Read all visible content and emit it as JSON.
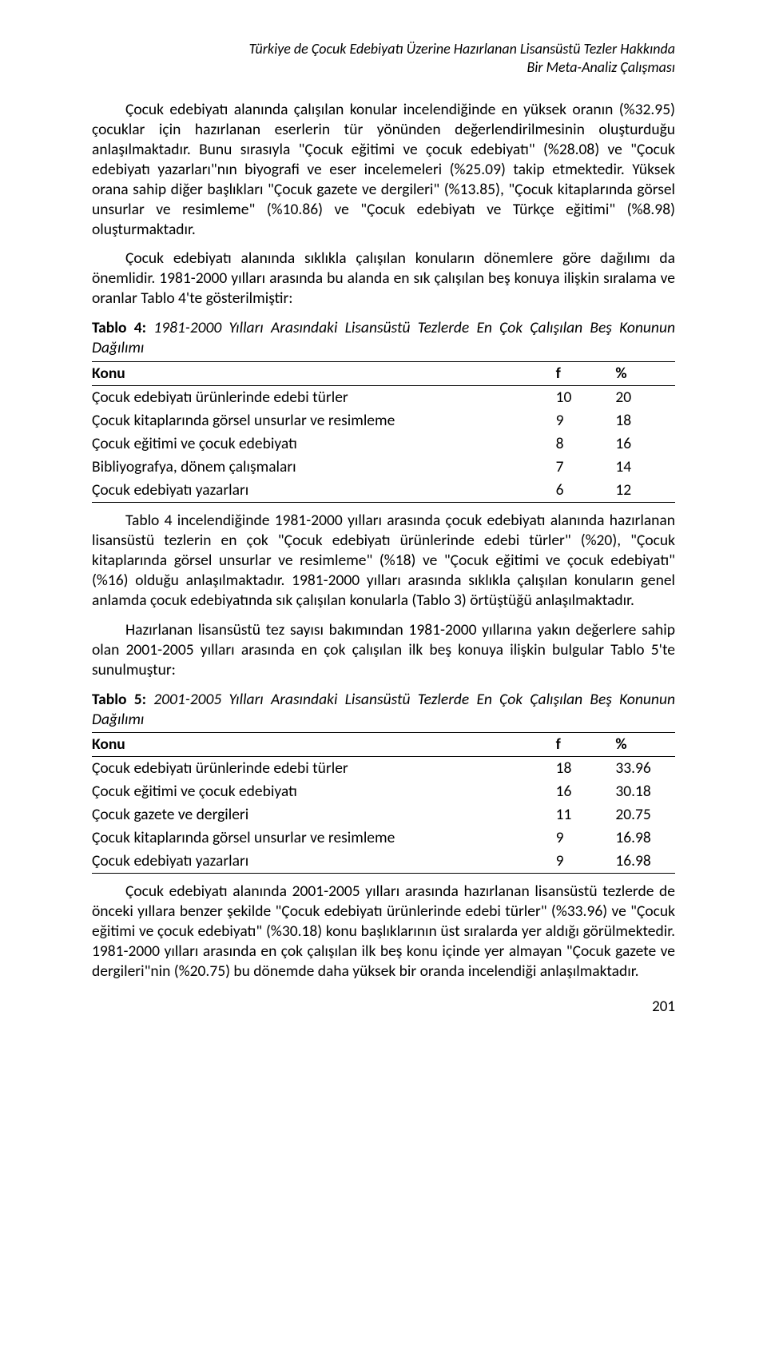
{
  "header": {
    "line1": "Türkiye de Çocuk Edebiyatı Üzerine Hazırlanan Lisansüstü Tezler Hakkında",
    "line2": "Bir Meta-Analiz Çalışması"
  },
  "para1": "Çocuk edebiyatı alanında çalışılan konular incelendiğinde en yüksek oranın (%32.95) çocuklar için hazırlanan eserlerin tür yönünden değerlendirilmesinin oluşturduğu anlaşılmaktadır. Bunu sırasıyla \"Çocuk eğitimi ve çocuk edebiyatı\" (%28.08) ve \"Çocuk edebiyatı yazarları\"nın biyografi ve eser incelemeleri (%25.09) takip etmektedir. Yüksek orana sahip diğer başlıkları \"Çocuk gazete ve dergileri\" (%13.85), \"Çocuk kitaplarında görsel unsurlar ve resimleme\" (%10.86) ve \"Çocuk edebiyatı ve Türkçe eğitimi\" (%8.98) oluşturmaktadır.",
  "para2": "Çocuk edebiyatı alanında sıklıkla çalışılan konuların dönemlere göre dağılımı da önemlidir. 1981-2000 yılları arasında bu alanda en sık çalışılan beş konuya ilişkin sıralama ve oranlar Tablo 4'te gösterilmiştir:",
  "table4": {
    "caption_bold": "Tablo 4:",
    "caption_italic": " 1981-2000 Yılları Arasındaki Lisansüstü Tezlerde En Çok Çalışılan Beş Konunun Dağılımı",
    "columns": [
      "Konu",
      "f",
      "%"
    ],
    "rows": [
      [
        "Çocuk edebiyatı ürünlerinde edebi türler",
        "10",
        "20"
      ],
      [
        "Çocuk kitaplarında görsel unsurlar ve resimleme",
        "9",
        "18"
      ],
      [
        "Çocuk eğitimi ve çocuk edebiyatı",
        "8",
        "16"
      ],
      [
        "Bibliyografya, dönem çalışmaları",
        "7",
        "14"
      ],
      [
        "Çocuk edebiyatı yazarları",
        "6",
        "12"
      ]
    ]
  },
  "para3": "Tablo 4 incelendiğinde 1981-2000 yılları arasında çocuk edebiyatı alanında hazırlanan lisansüstü tezlerin en çok \"Çocuk edebiyatı ürünlerinde edebi türler\" (%20), \"Çocuk kitaplarında görsel unsurlar ve resimleme\" (%18) ve \"Çocuk eğitimi ve çocuk edebiyatı\" (%16) olduğu anlaşılmaktadır. 1981-2000 yılları arasında sıklıkla çalışılan konuların genel anlamda çocuk edebiyatında sık çalışılan konularla (Tablo 3) örtüştüğü anlaşılmaktadır.",
  "para4": "Hazırlanan lisansüstü tez sayısı bakımından 1981-2000 yıllarına yakın değerlere sahip olan 2001-2005 yılları arasında en çok çalışılan ilk beş konuya ilişkin bulgular Tablo 5'te sunulmuştur:",
  "table5": {
    "caption_bold": "Tablo 5:",
    "caption_italic": " 2001-2005 Yılları Arasındaki Lisansüstü Tezlerde En Çok Çalışılan Beş Konunun Dağılımı",
    "columns": [
      "Konu",
      "f",
      "%"
    ],
    "rows": [
      [
        "Çocuk edebiyatı ürünlerinde edebi türler",
        "18",
        "33.96"
      ],
      [
        "Çocuk eğitimi ve çocuk edebiyatı",
        "16",
        "30.18"
      ],
      [
        "Çocuk gazete ve dergileri",
        "11",
        "20.75"
      ],
      [
        "Çocuk kitaplarında görsel unsurlar ve resimleme",
        "9",
        "16.98"
      ],
      [
        "Çocuk edebiyatı yazarları",
        "9",
        "16.98"
      ]
    ]
  },
  "para5": "Çocuk edebiyatı alanında 2001-2005 yılları arasında hazırlanan lisansüstü tezlerde de önceki yıllara benzer şekilde \"Çocuk edebiyatı ürünlerinde edebi türler\" (%33.96) ve \"Çocuk eğitimi ve çocuk edebiyatı\" (%30.18) konu başlıklarının üst sıralarda yer aldığı görülmektedir. 1981-2000 yılları arasında en çok çalışılan ilk beş konu içinde yer almayan \"Çocuk gazete ve dergileri\"nin (%20.75) bu dönemde daha yüksek bir oranda incelendiği anlaşılmaktadır.",
  "page_number": "201"
}
